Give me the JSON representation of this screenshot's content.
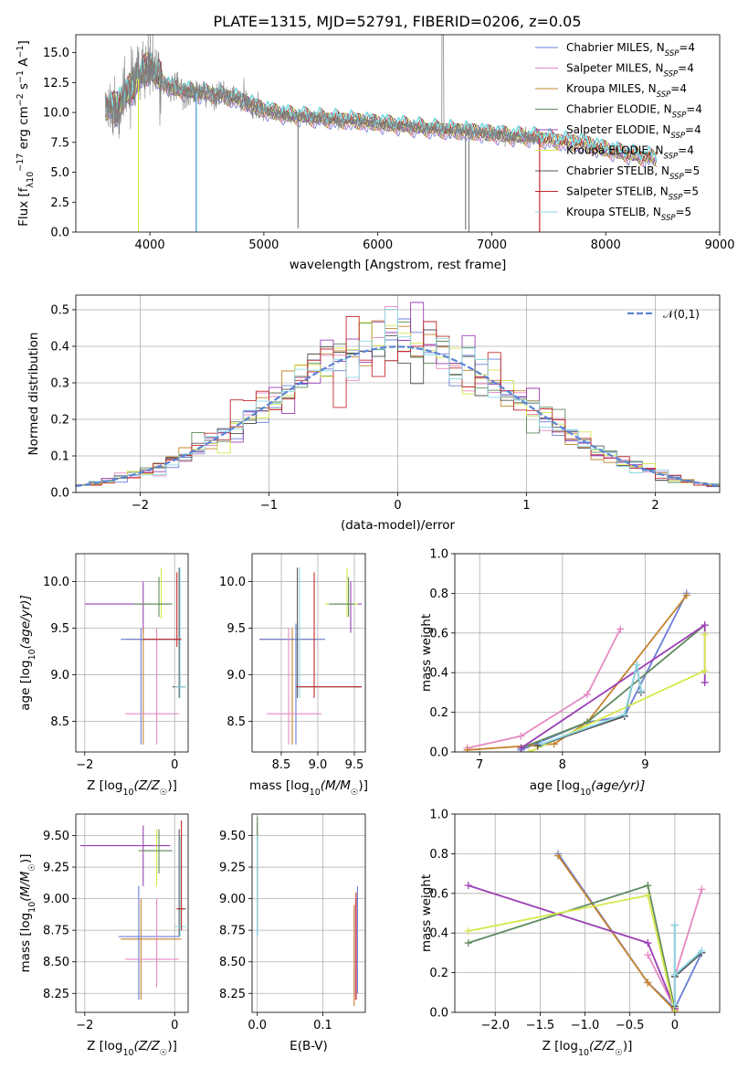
{
  "figure": {
    "title": "PLATE=1315, MJD=52791, FIBERID=0206, z=0.05"
  },
  "models": [
    {
      "label": "Chabrier MILES, N",
      "sub": "SSP",
      "suffix": "=4",
      "color": "#6a7fd6"
    },
    {
      "label": "Salpeter MILES, N",
      "sub": "SSP",
      "suffix": "=4",
      "color": "#e58ac3"
    },
    {
      "label": "Kroupa MILES, N",
      "sub": "SSP",
      "suffix": "=4",
      "color": "#c5832e"
    },
    {
      "label": "Chabrier ELODIE, N",
      "sub": "SSP",
      "suffix": "=4",
      "color": "#5f8a5f"
    },
    {
      "label": "Salpeter ELODIE, N",
      "sub": "SSP",
      "suffix": "=4",
      "color": "#9a3fb5"
    },
    {
      "label": "Kroupa ELODIE, N",
      "sub": "SSP",
      "suffix": "=4",
      "color": "#d6e84a"
    },
    {
      "label": "Chabrier STELIB, N",
      "sub": "SSP",
      "suffix": "=5",
      "color": "#555555"
    },
    {
      "label": "Salpeter STELIB, N",
      "sub": "SSP",
      "suffix": "=5",
      "color": "#c22a2a"
    },
    {
      "label": "Kroupa STELIB, N",
      "sub": "SSP",
      "suffix": "=5",
      "color": "#8fd9e6"
    }
  ],
  "chart_data": [
    {
      "type": "line",
      "id": "spectrum",
      "xlabel": "wavelength [Angstrom, rest frame]",
      "ylabel": "Flux [f",
      "ylabel_parts": [
        "Flux [f",
        "λ",
        "10",
        "−17",
        " erg cm",
        "−2",
        " s",
        "−1",
        " A",
        "−1",
        "]"
      ],
      "xlim": [
        3350,
        9000
      ],
      "ylim": [
        0,
        16.5
      ],
      "xticks": [
        4000,
        5000,
        6000,
        7000,
        8000,
        9000
      ],
      "yticks": [
        0.0,
        2.5,
        5.0,
        7.5,
        10.0,
        12.5,
        15.0
      ],
      "legend": "top-right",
      "observed_color": "#808080",
      "observed_range": [
        3610,
        7420
      ],
      "model_highlight_color": "#7fdde0",
      "continuum": {
        "x": [
          3610,
          3700,
          3800,
          3900,
          4000,
          4100,
          4200,
          4400,
          4600,
          4800,
          5000,
          5200,
          5500,
          5800,
          6000,
          6200,
          6500,
          6800,
          7000,
          7200,
          7400,
          7600,
          7800,
          8000,
          8200,
          8400
        ],
        "y": [
          10.5,
          10.3,
          11.5,
          12.8,
          13.8,
          12.6,
          12.0,
          11.6,
          11.5,
          11.0,
          10.2,
          9.8,
          9.5,
          9.3,
          9.1,
          8.9,
          8.6,
          8.4,
          8.2,
          8.0,
          7.9,
          7.6,
          7.4,
          6.9,
          6.5,
          6.2
        ]
      }
    },
    {
      "type": "line",
      "id": "residuals",
      "xlabel": "(data-model)/error",
      "ylabel": "Normed distribution",
      "xlim": [
        -2.5,
        2.5
      ],
      "ylim": [
        0,
        0.54
      ],
      "xticks": [
        -2,
        -1,
        0,
        1,
        2
      ],
      "yticks": [
        0.0,
        0.1,
        0.2,
        0.3,
        0.4,
        0.5
      ],
      "grid": true,
      "legend": "top-right",
      "legend_label": "𝒩(0,1)",
      "gaussian_color": "#5b84d4",
      "bin_width": 0.1
    },
    {
      "type": "scatter",
      "id": "age_vs_Z",
      "xlabel": "Z [log10(Z/Z☉)]",
      "xlabel_parts": [
        "Z [log",
        "10",
        "(Z/Z",
        "☉",
        ")]"
      ],
      "ylabel_parts": [
        "age  [log",
        "10",
        "(age/yr)]"
      ],
      "xlim": [
        -2.2,
        0.3
      ],
      "ylim": [
        8.17,
        10.3
      ],
      "xticks": [
        -2,
        0
      ],
      "yticks": [
        8.5,
        9.0,
        9.5,
        10.0
      ],
      "grid": true
    },
    {
      "type": "scatter",
      "id": "age_vs_mass",
      "xlabel_parts": [
        "mass [log",
        "10",
        "(M/M",
        "☉",
        ")]"
      ],
      "xlim": [
        8.1,
        9.65
      ],
      "ylim": [
        8.17,
        10.3
      ],
      "xticks": [
        8.5,
        9.0,
        9.5
      ],
      "yticks": [
        8.5,
        9.0,
        9.5,
        10.0
      ],
      "grid": true
    },
    {
      "type": "line",
      "id": "weight_vs_age",
      "xlabel_parts": [
        "age  [log",
        "10",
        "(age/yr)]"
      ],
      "ylabel": "mass weight",
      "xlim": [
        6.7,
        9.9
      ],
      "ylim": [
        0,
        1.0
      ],
      "xticks": [
        7,
        8,
        9
      ],
      "yticks": [
        0.0,
        0.2,
        0.4,
        0.6,
        0.8,
        1.0
      ],
      "grid": true,
      "series": [
        {
          "model": 0,
          "x": [
            7.5,
            8.3,
            8.75,
            9.5
          ],
          "y": [
            0.01,
            0.15,
            0.18,
            0.8
          ]
        },
        {
          "model": 1,
          "x": [
            6.85,
            7.5,
            8.3,
            8.7
          ],
          "y": [
            0.02,
            0.08,
            0.29,
            0.62
          ]
        },
        {
          "model": 2,
          "x": [
            6.85,
            7.9,
            8.3,
            9.5
          ],
          "y": [
            0.01,
            0.04,
            0.15,
            0.79
          ]
        },
        {
          "model": 3,
          "x": [
            7.5,
            8.3,
            9.72
          ],
          "y": [
            0.02,
            0.15,
            0.64
          ]
        },
        {
          "model": 4,
          "x": [
            7.5,
            9.72,
            9.72
          ],
          "y": [
            0.02,
            0.64,
            0.35
          ]
        },
        {
          "model": 5,
          "x": [
            7.6,
            9.72,
            9.72
          ],
          "y": [
            0.0,
            0.41,
            0.59
          ]
        },
        {
          "model": 6,
          "x": [
            7.7,
            8.75,
            8.9,
            8.95
          ],
          "y": [
            0.03,
            0.18,
            0.44,
            0.3
          ]
        },
        {
          "model": 8,
          "x": [
            7.75,
            8.75,
            8.9,
            8.95
          ],
          "y": [
            0.04,
            0.19,
            0.44,
            0.31
          ]
        }
      ]
    },
    {
      "type": "scatter",
      "id": "mass_vs_Z",
      "xlabel_parts": [
        "Z [log",
        "10",
        "(Z/Z",
        "☉",
        ")]"
      ],
      "ylabel_parts": [
        "mass [log",
        "10",
        "(M/M",
        "☉",
        ")]"
      ],
      "xlim": [
        -2.2,
        0.3
      ],
      "ylim": [
        8.1,
        9.67
      ],
      "xticks": [
        -2,
        0
      ],
      "yticks": [
        8.25,
        8.5,
        8.75,
        9.0,
        9.25,
        9.5
      ],
      "grid": true
    },
    {
      "type": "scatter",
      "id": "mass_vs_ebv",
      "xlabel": "E(B-V)",
      "xlim": [
        -0.008,
        0.165
      ],
      "ylim": [
        8.1,
        9.67
      ],
      "xticks": [
        0.0,
        0.1
      ],
      "yticks": [
        8.25,
        8.5,
        8.75,
        9.0,
        9.25,
        9.5
      ],
      "grid": true,
      "points": [
        {
          "model": 0,
          "x": 0.0,
          "y": 9.05,
          "lo": 8.7,
          "hi": 9.55
        },
        {
          "model": 1,
          "x": 0.0,
          "y": 9.2,
          "lo": 8.8,
          "hi": 9.6
        },
        {
          "model": 3,
          "x": 0.0,
          "y": 9.2,
          "lo": 8.75,
          "hi": 9.65
        },
        {
          "model": 8,
          "x": 0.0,
          "y": 9.1,
          "lo": 8.7,
          "hi": 9.5
        },
        {
          "model": 1,
          "x": 0.15,
          "y": 8.6,
          "lo": 8.2,
          "hi": 9.0
        },
        {
          "model": 2,
          "x": 0.148,
          "y": 8.55,
          "lo": 8.15,
          "hi": 8.95
        },
        {
          "model": 7,
          "x": 0.151,
          "y": 8.65,
          "lo": 8.2,
          "hi": 9.05
        },
        {
          "model": 0,
          "x": 0.153,
          "y": 8.7,
          "lo": 8.25,
          "hi": 9.1
        }
      ]
    },
    {
      "type": "line",
      "id": "weight_vs_Z",
      "xlabel_parts": [
        "Z [log",
        "10",
        "(Z/Z",
        "☉",
        ")]"
      ],
      "ylabel": "mass weight",
      "xlim": [
        -2.45,
        0.5
      ],
      "ylim": [
        0,
        1.0
      ],
      "xticks": [
        -2.0,
        -1.5,
        -1.0,
        -0.5,
        0.0
      ],
      "yticks": [
        0.0,
        0.2,
        0.4,
        0.6,
        0.8,
        1.0
      ],
      "grid": true,
      "series": [
        {
          "model": 0,
          "x": [
            -1.3,
            -0.3,
            0.0,
            0.3
          ],
          "y": [
            0.8,
            0.15,
            0.02,
            0.3
          ]
        },
        {
          "model": 1,
          "x": [
            -0.3,
            0.0,
            0.0,
            0.3
          ],
          "y": [
            0.29,
            0.02,
            0.18,
            0.62
          ]
        },
        {
          "model": 2,
          "x": [
            -1.3,
            -0.3,
            0.0
          ],
          "y": [
            0.79,
            0.15,
            0.01
          ]
        },
        {
          "model": 3,
          "x": [
            -2.3,
            -0.3,
            0.0
          ],
          "y": [
            0.35,
            0.64,
            0.02
          ]
        },
        {
          "model": 4,
          "x": [
            -2.3,
            -0.3,
            0.0
          ],
          "y": [
            0.64,
            0.35,
            0.02
          ]
        },
        {
          "model": 5,
          "x": [
            -2.3,
            -0.3,
            0.0
          ],
          "y": [
            0.41,
            0.59,
            0.0
          ]
        },
        {
          "model": 6,
          "x": [
            0.0,
            0.0,
            0.0,
            0.3
          ],
          "y": [
            0.44,
            0.03,
            0.18,
            0.3
          ]
        },
        {
          "model": 8,
          "x": [
            0.0,
            0.0,
            0.0,
            0.3
          ],
          "y": [
            0.44,
            0.04,
            0.19,
            0.31
          ]
        }
      ]
    }
  ]
}
